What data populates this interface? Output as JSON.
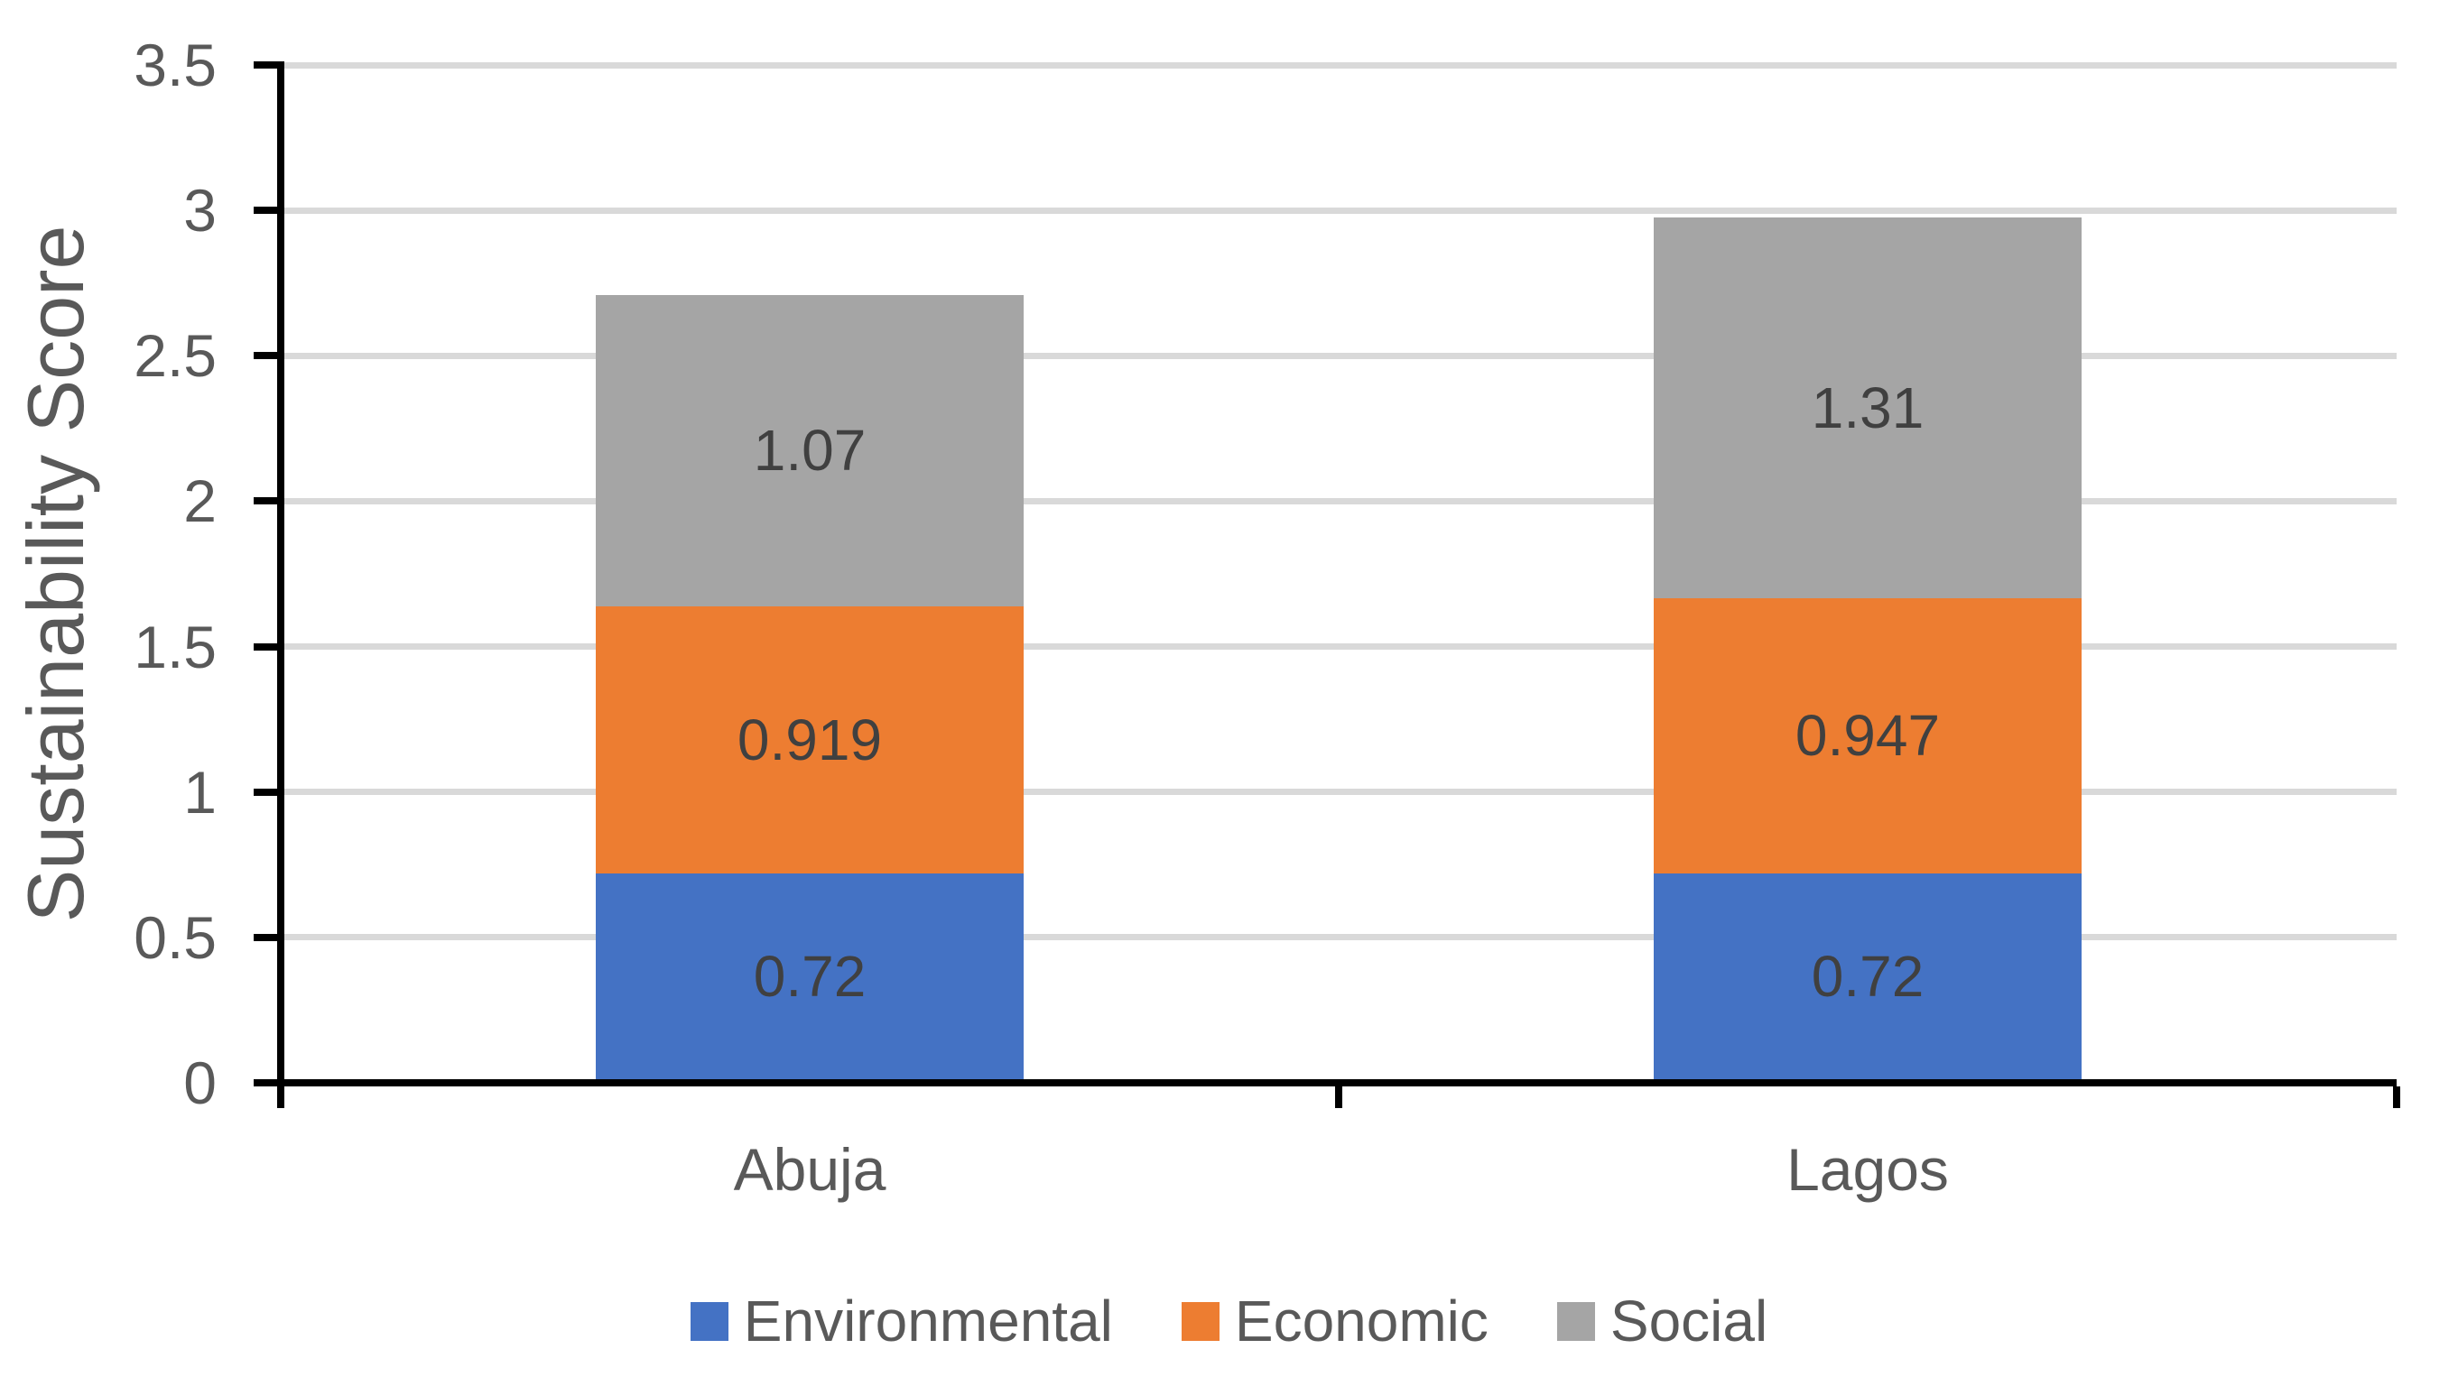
{
  "chart_data": {
    "type": "bar",
    "stacked": true,
    "title": "",
    "xlabel": "",
    "ylabel": "Sustainability Score",
    "categories": [
      "Abuja",
      "Lagos"
    ],
    "series": [
      {
        "name": "Environmental",
        "color": "#4472C4",
        "values": [
          0.72,
          0.72
        ],
        "labels": [
          "0.72",
          "0.72"
        ]
      },
      {
        "name": "Economic",
        "color": "#ED7D31",
        "values": [
          0.919,
          0.947
        ],
        "labels": [
          "0.919",
          "0.947"
        ]
      },
      {
        "name": "Social",
        "color": "#A5A5A5",
        "values": [
          1.07,
          1.31
        ],
        "labels": [
          "1.07",
          "1.31"
        ]
      }
    ],
    "totals": [
      2.709,
      2.977
    ],
    "ylim": [
      0,
      3.5
    ],
    "ytick_step": 0.5,
    "ytick_labels": [
      "0",
      "0.5",
      "1",
      "1.5",
      "2",
      "2.5",
      "3",
      "3.5"
    ],
    "grid": true,
    "legend_position": "bottom"
  },
  "colors": {
    "background": "#FFFFFF",
    "gridline": "#D9D9D9",
    "axis": "#000000",
    "tick_label": "#595959",
    "data_label": "#404040",
    "category_label": "#595959",
    "axis_title": "#595959",
    "legend_label": "#595959"
  }
}
